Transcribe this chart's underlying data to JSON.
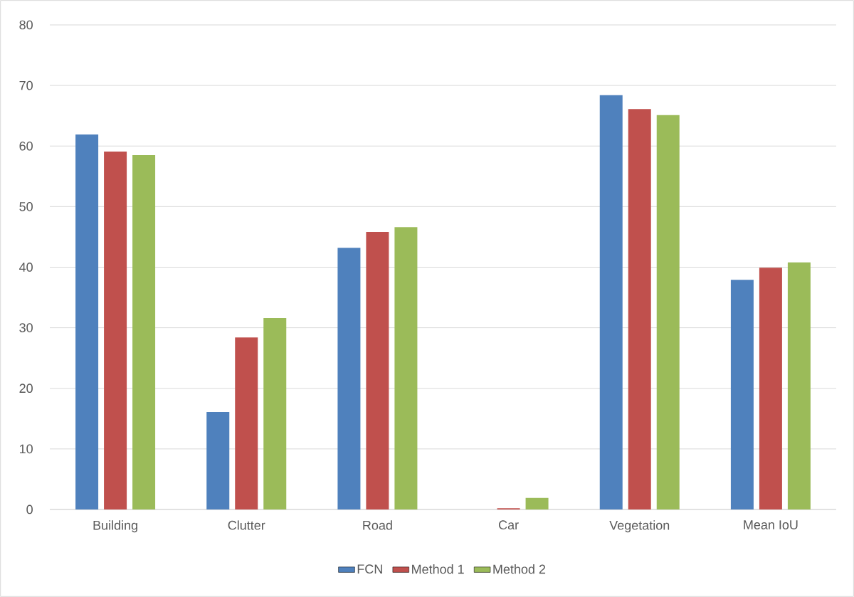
{
  "chart_data": {
    "type": "bar",
    "categories": [
      "Building",
      "Clutter",
      "Road",
      "Car",
      "Vegetation",
      "Mean IoU"
    ],
    "series": [
      {
        "name": "FCN",
        "color": "#4f81bd",
        "values": [
          61.9,
          16.1,
          43.2,
          0,
          68.4,
          37.9
        ]
      },
      {
        "name": "Method 1",
        "color": "#c0504d",
        "values": [
          59.1,
          28.4,
          45.8,
          0.2,
          66.1,
          39.9
        ]
      },
      {
        "name": "Method 2",
        "color": "#9bbb59",
        "values": [
          58.5,
          31.6,
          46.6,
          1.9,
          65.1,
          40.8
        ]
      }
    ],
    "ylim": [
      0,
      80
    ],
    "yticks": [
      0,
      10,
      20,
      30,
      40,
      50,
      60,
      70,
      80
    ],
    "grid": "y",
    "legend": "bottom"
  }
}
